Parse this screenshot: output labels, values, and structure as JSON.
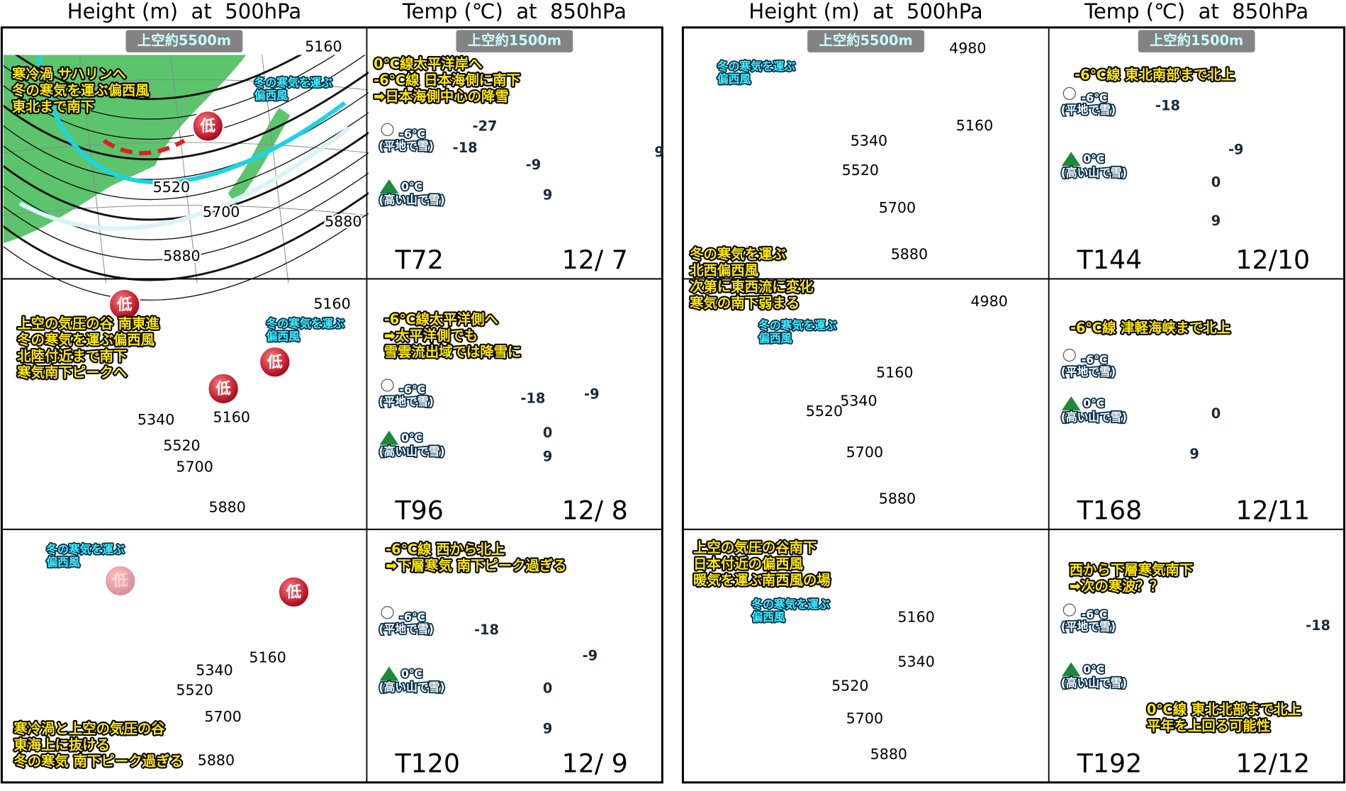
{
  "halves": [
    {
      "height_title": "Height (m)  at  500hPa",
      "temp_title": "Temp (℃)  at  850hPa",
      "rows": [
        {
          "height": {
            "badge": "上空約5500m",
            "notes": [
              [
                "寒冷渦 サハリンへ",
                "冬の寒気を運ぶ偏西風",
                "東北まで南下"
              ]
            ],
            "wind": [
              "冬の寒気を運ぶ",
              "偏西風"
            ],
            "lows": [
              "低"
            ],
            "contours": [
              5160,
              5700,
              5880,
              5880,
              5520
            ]
          },
          "temp": {
            "badge": "上空約1500m",
            "notes": [
              [
                "0℃線太平洋岸へ",
                "-6℃線 日本海側に南下",
                "➡日本海側中心の降雪"
              ]
            ],
            "snow": [
              "-6℃",
              "(平地で雪)"
            ],
            "mountain": [
              "0℃",
              "(高い山で雪)"
            ],
            "isotherms": [
              -27,
              -18,
              -9,
              9,
              9
            ]
          },
          "forecast": "T72",
          "date": "12/ 7"
        },
        {
          "height": {
            "notes": [
              [
                "上空の気圧の谷 南東進",
                "冬の寒気を運ぶ偏西風",
                "北陸付近まで南下",
                "寒気南下ピークへ"
              ]
            ],
            "wind": [
              "冬の寒気を運ぶ",
              "偏西風"
            ],
            "lows": [
              "低",
              "低",
              "低"
            ],
            "contours": [
              5160,
              5160,
              5340,
              5520,
              5700,
              5880
            ]
          },
          "temp": {
            "notes": [
              [
                "-6℃線太平洋側へ",
                "➡太平洋側でも",
                "雪雲流出域では降雪に"
              ]
            ],
            "snow": [
              "-6℃",
              "(平地で雪)"
            ],
            "mountain": [
              "0℃",
              "(高い山で雪)"
            ],
            "isotherms": [
              -18,
              -9,
              0,
              9
            ]
          },
          "forecast": "T96",
          "date": "12/ 8"
        },
        {
          "height": {
            "notes": [
              [
                "寒冷渦と上空の気圧の谷",
                "東海上に抜ける",
                "冬の寒気 南下ピーク過ぎる"
              ]
            ],
            "wind": [
              "冬の寒気を運ぶ",
              "偏西風"
            ],
            "lows": [
              "低",
              "低"
            ],
            "contours": [
              5160,
              5340,
              5520,
              5700,
              5880
            ]
          },
          "temp": {
            "notes": [
              [
                "-6℃線 西から北上",
                "➡下層寒気 南下ピーク過ぎる"
              ]
            ],
            "snow": [
              "-6℃",
              "(平地で雪)"
            ],
            "mountain": [
              "0℃",
              "(高い山で雪)"
            ],
            "isotherms": [
              -18,
              -9,
              0,
              9
            ]
          },
          "forecast": "T120",
          "date": "12/ 9"
        }
      ]
    },
    {
      "height_title": "Height (m)  at  500hPa",
      "temp_title": "Temp (℃)  at  850hPa",
      "rows": [
        {
          "height": {
            "badge": "上空約5500m",
            "notes": [],
            "wind": [
              "冬の寒気を運ぶ",
              "偏西風"
            ],
            "lows": [],
            "contours": [
              4980,
              5160,
              5340,
              5520,
              5700,
              5880
            ]
          },
          "temp": {
            "badge": "上空約1500m",
            "notes": [
              [
                "-6℃線 東北南部まで北上"
              ]
            ],
            "snow": [
              "-6℃",
              "(平地で雪)"
            ],
            "mountain": [
              "0℃",
              "(高い山で雪)"
            ],
            "isotherms": [
              -18,
              -9,
              0,
              9
            ]
          },
          "forecast": "T144",
          "date": "12/10"
        },
        {
          "height": {
            "notes": [
              [
                "冬の寒気を運ぶ",
                "北西偏西風",
                "次第に東西流に変化",
                "寒気の南下弱まる"
              ]
            ],
            "wind": [
              "冬の寒気を運ぶ",
              "偏西風"
            ],
            "lows": [],
            "contours": [
              4980,
              5160,
              5340,
              5520,
              5700,
              5880
            ]
          },
          "temp": {
            "notes": [
              [
                "-6℃線 津軽海峡まで北上"
              ]
            ],
            "snow": [
              "-6℃",
              "(平地で雪)"
            ],
            "mountain": [
              "0℃",
              "(高い山で雪)"
            ],
            "isotherms": [
              0,
              9
            ]
          },
          "forecast": "T168",
          "date": "12/11"
        },
        {
          "height": {
            "notes": [
              [
                "上空の気圧の谷南下",
                "日本付近の偏西風",
                "暖気を運ぶ南西風の場"
              ]
            ],
            "wind": [
              "冬の寒気を運ぶ",
              "偏西風"
            ],
            "lows": [],
            "contours": [
              5160,
              5340,
              5520,
              5700,
              5880
            ]
          },
          "temp": {
            "notes": [
              [
                "西から下層寒気南下",
                "➡次の寒波？？"
              ],
              [
                "0℃線 東北北部まで北上",
                "平年を上回る可能性"
              ]
            ],
            "snow": [
              "-6℃",
              "(平地で雪)"
            ],
            "mountain": [
              "0℃",
              "(高い山で雪)"
            ],
            "isotherms": [
              -18
            ]
          },
          "forecast": "T192",
          "date": "12/12"
        }
      ]
    }
  ]
}
